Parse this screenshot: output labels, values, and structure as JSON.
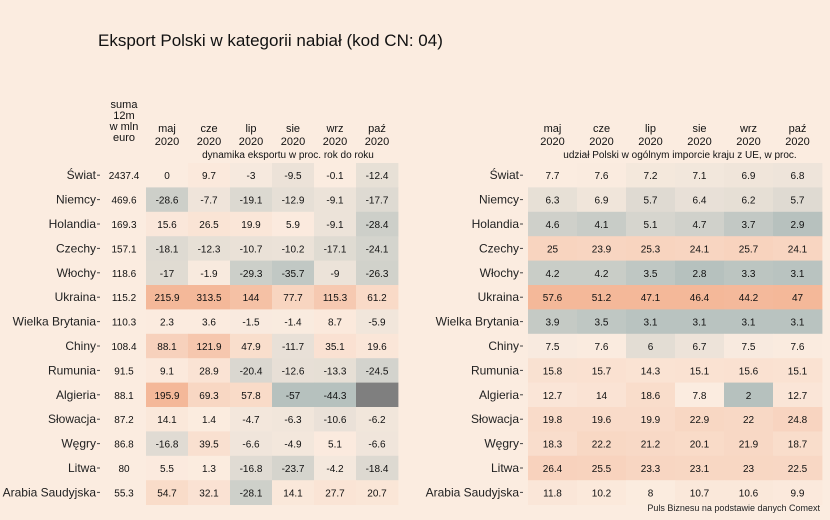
{
  "title": "Eksport Polski w kategorii nabiał (kod CN: 04)",
  "caption": "Puls Biznesu na podstawie danych Comext",
  "chart_data": [
    {
      "type": "heatmap",
      "subtitle": "dynamika eksportu w proc. rok do roku",
      "value_column_header": [
        "suma",
        "12m",
        "w mln",
        "euro"
      ],
      "columns": [
        "maj\n2020",
        "cze\n2020",
        "lip\n2020",
        "sie\n2020",
        "wrz\n2020",
        "paź\n2020"
      ],
      "rows": [
        "Świat",
        "Niemcy",
        "Holandia",
        "Czechy",
        "Włochy",
        "Ukraina",
        "Wielka Brytania",
        "Chiny",
        "Rumunia",
        "Algieria",
        "Słowacja",
        "Węgry",
        "Litwa",
        "Arabia Saudyjska"
      ],
      "sum12m": [
        "2437.4",
        "469.6",
        "169.3",
        "157.1",
        "118.6",
        "115.2",
        "110.3",
        "108.4",
        "91.5",
        "88.1",
        "87.2",
        "86.8",
        "80",
        "55.3"
      ],
      "values": [
        [
          "0",
          "9.7",
          "-3",
          "-9.5",
          "-0.1",
          "-12.4"
        ],
        [
          "-28.6",
          "-7.7",
          "-19.1",
          "-12.9",
          "-9.1",
          "-17.7"
        ],
        [
          "15.6",
          "26.5",
          "19.9",
          "5.9",
          "-9.1",
          "-28.4"
        ],
        [
          "-18.1",
          "-12.3",
          "-10.7",
          "-10.2",
          "-17.1",
          "-24.1"
        ],
        [
          "-17",
          "-1.9",
          "-29.3",
          "-35.7",
          "-9",
          "-26.3"
        ],
        [
          "215.9",
          "313.5",
          "144",
          "77.7",
          "115.3",
          "61.2"
        ],
        [
          "2.3",
          "3.6",
          "-1.5",
          "-1.4",
          "8.7",
          "-5.9"
        ],
        [
          "88.1",
          "121.9",
          "47.9",
          "-11.7",
          "35.1",
          "19.6"
        ],
        [
          "9.1",
          "28.9",
          "-20.4",
          "-12.6",
          "-13.3",
          "-24.5"
        ],
        [
          "195.9",
          "69.3",
          "57.8",
          "-57",
          "-44.3",
          null
        ],
        [
          "14.1",
          "1.4",
          "-4.7",
          "-6.3",
          "-10.6",
          "-6.2"
        ],
        [
          "-16.8",
          "39.5",
          "-6.6",
          "-4.9",
          "5.1",
          "-6.6"
        ],
        [
          "5.5",
          "1.3",
          "-16.8",
          "-23.7",
          "-4.2",
          "-18.4"
        ],
        [
          "54.7",
          "32.1",
          "-28.1",
          "14.1",
          "27.7",
          "20.7"
        ]
      ]
    },
    {
      "type": "heatmap",
      "subtitle": "udział Polski w ogólnym imporcie kraju z UE, w proc.",
      "columns": [
        "maj\n2020",
        "cze\n2020",
        "lip\n2020",
        "sie\n2020",
        "wrz\n2020",
        "paź\n2020"
      ],
      "rows": [
        "Świat",
        "Niemcy",
        "Holandia",
        "Czechy",
        "Włochy",
        "Ukraina",
        "Wielka Brytania",
        "Chiny",
        "Rumunia",
        "Algieria",
        "Słowacja",
        "Węgry",
        "Litwa",
        "Arabia Saudyjska"
      ],
      "values": [
        [
          "7.7",
          "7.6",
          "7.2",
          "7.1",
          "6.9",
          "6.8"
        ],
        [
          "6.3",
          "6.9",
          "5.7",
          "6.4",
          "6.2",
          "5.7"
        ],
        [
          "4.6",
          "4.1",
          "5.1",
          "4.7",
          "3.7",
          "2.9"
        ],
        [
          "25",
          "23.9",
          "25.3",
          "24.1",
          "25.7",
          "24.1"
        ],
        [
          "4.2",
          "4.2",
          "3.5",
          "2.8",
          "3.3",
          "3.1"
        ],
        [
          "57.6",
          "51.2",
          "47.1",
          "46.4",
          "44.2",
          "47"
        ],
        [
          "3.9",
          "3.5",
          "3.1",
          "3.1",
          "3.1",
          "3.1"
        ],
        [
          "7.5",
          "7.6",
          "6",
          "6.7",
          "7.5",
          "7.6"
        ],
        [
          "15.8",
          "15.7",
          "14.3",
          "15.1",
          "15.6",
          "15.1"
        ],
        [
          "12.7",
          "14",
          "18.6",
          "7.8",
          "2",
          "12.7"
        ],
        [
          "19.8",
          "19.6",
          "19.9",
          "22.9",
          "22",
          "24.8"
        ],
        [
          "18.3",
          "22.2",
          "21.2",
          "20.1",
          "21.9",
          "18.7"
        ],
        [
          "26.4",
          "25.5",
          "23.3",
          "23.1",
          "23",
          "22.5"
        ],
        [
          "11.8",
          "10.2",
          "8",
          "10.7",
          "10.6",
          "9.9"
        ]
      ]
    }
  ]
}
